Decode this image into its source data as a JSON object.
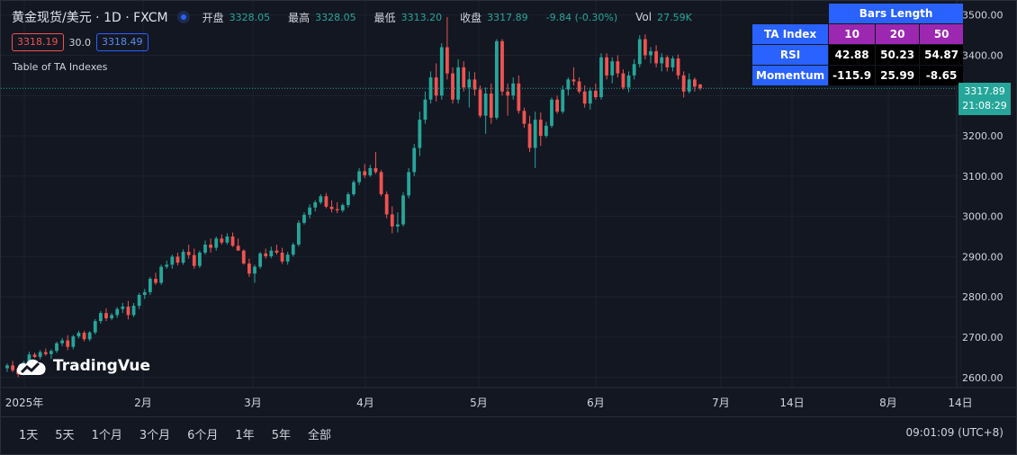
{
  "header": {
    "symbol": "黄金现货/美元 · 1D · FXCM",
    "open_label": "开盘",
    "open": "3328.05",
    "high_label": "最高",
    "high": "3328.05",
    "low_label": "最低",
    "low": "3313.20",
    "close_label": "收盘",
    "close": "3317.89",
    "change": "-9.84 (-0.30%)",
    "vol_label": "Vol",
    "vol": "27.59K"
  },
  "quote": {
    "bid": "3318.19",
    "spread": "30.0",
    "ask": "3318.49"
  },
  "indicator_title": "Table of TA Indexes",
  "logo_text": "TradingVue",
  "ta_table": {
    "bars_header": "Bars Length",
    "index_header": "TA Index",
    "lengths": [
      "10",
      "20",
      "50"
    ],
    "rows": [
      {
        "name": "RSI",
        "values": [
          "42.88",
          "50.23",
          "54.87"
        ]
      },
      {
        "name": "Momentum",
        "values": [
          "-115.9",
          "25.99",
          "-8.65"
        ]
      }
    ]
  },
  "last_price": {
    "price": "3317.89",
    "countdown": "21:08:29"
  },
  "footer": {
    "ranges": [
      "1天",
      "5天",
      "1个月",
      "3个月",
      "6个月",
      "1年",
      "5年",
      "全部"
    ],
    "clock": "09:01:09 (UTC+8)"
  },
  "colors": {
    "up": "#26a69a",
    "down": "#ef5350",
    "background": "#131722",
    "grid": "#1e222d",
    "text": "#d1d4dc",
    "accent": "#2962ff"
  },
  "chart_data": {
    "type": "candlestick",
    "x_tick_labels": [
      "2025年",
      "2月",
      "3月",
      "4月",
      "5月",
      "6月",
      "7月",
      "14日",
      "8月",
      "14日"
    ],
    "y_tick_labels": [
      "3500.00",
      "3400.00",
      "3300.00",
      "3200.00",
      "3100.00",
      "3000.00",
      "2900.00",
      "2800.00",
      "2700.00",
      "2600.00"
    ],
    "ylim": [
      2575,
      3535
    ],
    "last_close": 3317.89,
    "ohlc": [
      [
        2623,
        2635,
        2614,
        2630
      ],
      [
        2630,
        2641,
        2613,
        2618
      ],
      [
        2618,
        2625,
        2601,
        2608
      ],
      [
        2609,
        2641,
        2605,
        2637
      ],
      [
        2637,
        2664,
        2630,
        2657
      ],
      [
        2657,
        2662,
        2648,
        2651
      ],
      [
        2651,
        2668,
        2645,
        2663
      ],
      [
        2663,
        2672,
        2654,
        2658
      ],
      [
        2658,
        2670,
        2646,
        2666
      ],
      [
        2666,
        2689,
        2661,
        2685
      ],
      [
        2685,
        2698,
        2678,
        2692
      ],
      [
        2692,
        2705,
        2668,
        2676
      ],
      [
        2676,
        2706,
        2670,
        2702
      ],
      [
        2702,
        2716,
        2697,
        2711
      ],
      [
        2711,
        2716,
        2690,
        2695
      ],
      [
        2695,
        2715,
        2690,
        2712
      ],
      [
        2712,
        2745,
        2707,
        2740
      ],
      [
        2740,
        2765,
        2734,
        2760
      ],
      [
        2760,
        2772,
        2740,
        2747
      ],
      [
        2747,
        2760,
        2742,
        2755
      ],
      [
        2755,
        2775,
        2748,
        2770
      ],
      [
        2770,
        2785,
        2760,
        2776
      ],
      [
        2776,
        2790,
        2744,
        2755
      ],
      [
        2755,
        2785,
        2750,
        2778
      ],
      [
        2778,
        2810,
        2770,
        2805
      ],
      [
        2805,
        2820,
        2795,
        2812
      ],
      [
        2812,
        2850,
        2805,
        2845
      ],
      [
        2845,
        2860,
        2830,
        2835
      ],
      [
        2835,
        2880,
        2830,
        2875
      ],
      [
        2875,
        2890,
        2870,
        2880
      ],
      [
        2880,
        2905,
        2870,
        2900
      ],
      [
        2900,
        2910,
        2878,
        2885
      ],
      [
        2885,
        2918,
        2880,
        2912
      ],
      [
        2912,
        2930,
        2895,
        2904
      ],
      [
        2904,
        2920,
        2870,
        2877
      ],
      [
        2877,
        2915,
        2872,
        2910
      ],
      [
        2910,
        2940,
        2905,
        2930
      ],
      [
        2930,
        2945,
        2910,
        2922
      ],
      [
        2922,
        2950,
        2915,
        2945
      ],
      [
        2945,
        2955,
        2930,
        2935
      ],
      [
        2935,
        2958,
        2930,
        2950
      ],
      [
        2950,
        2960,
        2924,
        2927
      ],
      [
        2927,
        2945,
        2920,
        2915
      ],
      [
        2915,
        2918,
        2880,
        2883
      ],
      [
        2883,
        2895,
        2850,
        2858
      ],
      [
        2858,
        2880,
        2835,
        2875
      ],
      [
        2875,
        2912,
        2870,
        2908
      ],
      [
        2908,
        2920,
        2895,
        2901
      ],
      [
        2901,
        2925,
        2896,
        2915
      ],
      [
        2915,
        2930,
        2905,
        2910
      ],
      [
        2910,
        2922,
        2882,
        2888
      ],
      [
        2888,
        2912,
        2880,
        2905
      ],
      [
        2905,
        2935,
        2900,
        2930
      ],
      [
        2930,
        2990,
        2925,
        2984
      ],
      [
        2984,
        3010,
        2980,
        3004
      ],
      [
        3004,
        3030,
        2995,
        3022
      ],
      [
        3022,
        3040,
        3012,
        3035
      ],
      [
        3035,
        3055,
        3030,
        3050
      ],
      [
        3050,
        3058,
        3020,
        3024
      ],
      [
        3024,
        3040,
        3010,
        3018
      ],
      [
        3018,
        3035,
        3008,
        3015
      ],
      [
        3015,
        3032,
        3010,
        3028
      ],
      [
        3028,
        3060,
        3022,
        3055
      ],
      [
        3055,
        3090,
        3050,
        3085
      ],
      [
        3085,
        3120,
        3078,
        3112
      ],
      [
        3112,
        3130,
        3095,
        3102
      ],
      [
        3102,
        3128,
        3098,
        3120
      ],
      [
        3120,
        3160,
        3105,
        3110
      ],
      [
        3110,
        3115,
        3050,
        3055
      ],
      [
        3055,
        3062,
        2995,
        3005
      ],
      [
        3005,
        3025,
        2958,
        2975
      ],
      [
        2975,
        3010,
        2960,
        2980
      ],
      [
        2980,
        3060,
        2975,
        3052
      ],
      [
        3052,
        3120,
        3045,
        3110
      ],
      [
        3110,
        3180,
        3100,
        3170
      ],
      [
        3170,
        3260,
        3150,
        3240
      ],
      [
        3240,
        3310,
        3230,
        3290
      ],
      [
        3290,
        3360,
        3280,
        3345
      ],
      [
        3345,
        3380,
        3285,
        3300
      ],
      [
        3300,
        3430,
        3290,
        3420
      ],
      [
        3420,
        3495,
        3340,
        3355
      ],
      [
        3355,
        3370,
        3280,
        3290
      ],
      [
        3290,
        3390,
        3280,
        3370
      ],
      [
        3370,
        3385,
        3310,
        3320
      ],
      [
        3320,
        3360,
        3270,
        3340
      ],
      [
        3340,
        3358,
        3300,
        3315
      ],
      [
        3315,
        3325,
        3245,
        3250
      ],
      [
        3250,
        3320,
        3205,
        3305
      ],
      [
        3305,
        3330,
        3230,
        3245
      ],
      [
        3245,
        3440,
        3240,
        3435
      ],
      [
        3435,
        3440,
        3300,
        3310
      ],
      [
        3310,
        3330,
        3250,
        3300
      ],
      [
        3300,
        3345,
        3290,
        3330
      ],
      [
        3330,
        3350,
        3255,
        3262
      ],
      [
        3262,
        3270,
        3220,
        3230
      ],
      [
        3230,
        3250,
        3160,
        3170
      ],
      [
        3170,
        3260,
        3120,
        3240
      ],
      [
        3240,
        3258,
        3175,
        3200
      ],
      [
        3200,
        3235,
        3195,
        3225
      ],
      [
        3225,
        3295,
        3220,
        3290
      ],
      [
        3290,
        3300,
        3255,
        3260
      ],
      [
        3260,
        3325,
        3255,
        3315
      ],
      [
        3315,
        3345,
        3300,
        3340
      ],
      [
        3340,
        3370,
        3325,
        3335
      ],
      [
        3335,
        3345,
        3305,
        3310
      ],
      [
        3310,
        3325,
        3270,
        3280
      ],
      [
        3280,
        3320,
        3265,
        3312
      ],
      [
        3312,
        3330,
        3290,
        3296
      ],
      [
        3296,
        3405,
        3290,
        3395
      ],
      [
        3395,
        3405,
        3340,
        3350
      ],
      [
        3350,
        3395,
        3330,
        3385
      ],
      [
        3385,
        3400,
        3345,
        3355
      ],
      [
        3355,
        3365,
        3315,
        3320
      ],
      [
        3320,
        3360,
        3308,
        3350
      ],
      [
        3350,
        3390,
        3340,
        3378
      ],
      [
        3378,
        3450,
        3370,
        3440
      ],
      [
        3440,
        3452,
        3390,
        3400
      ],
      [
        3400,
        3420,
        3380,
        3410
      ],
      [
        3410,
        3425,
        3370,
        3380
      ],
      [
        3380,
        3405,
        3360,
        3395
      ],
      [
        3395,
        3400,
        3360,
        3370
      ],
      [
        3370,
        3398,
        3360,
        3392
      ],
      [
        3392,
        3402,
        3340,
        3350
      ],
      [
        3350,
        3360,
        3295,
        3310
      ],
      [
        3310,
        3355,
        3305,
        3340
      ],
      [
        3340,
        3345,
        3310,
        3322
      ],
      [
        3328,
        3328,
        3313,
        3318
      ]
    ]
  }
}
